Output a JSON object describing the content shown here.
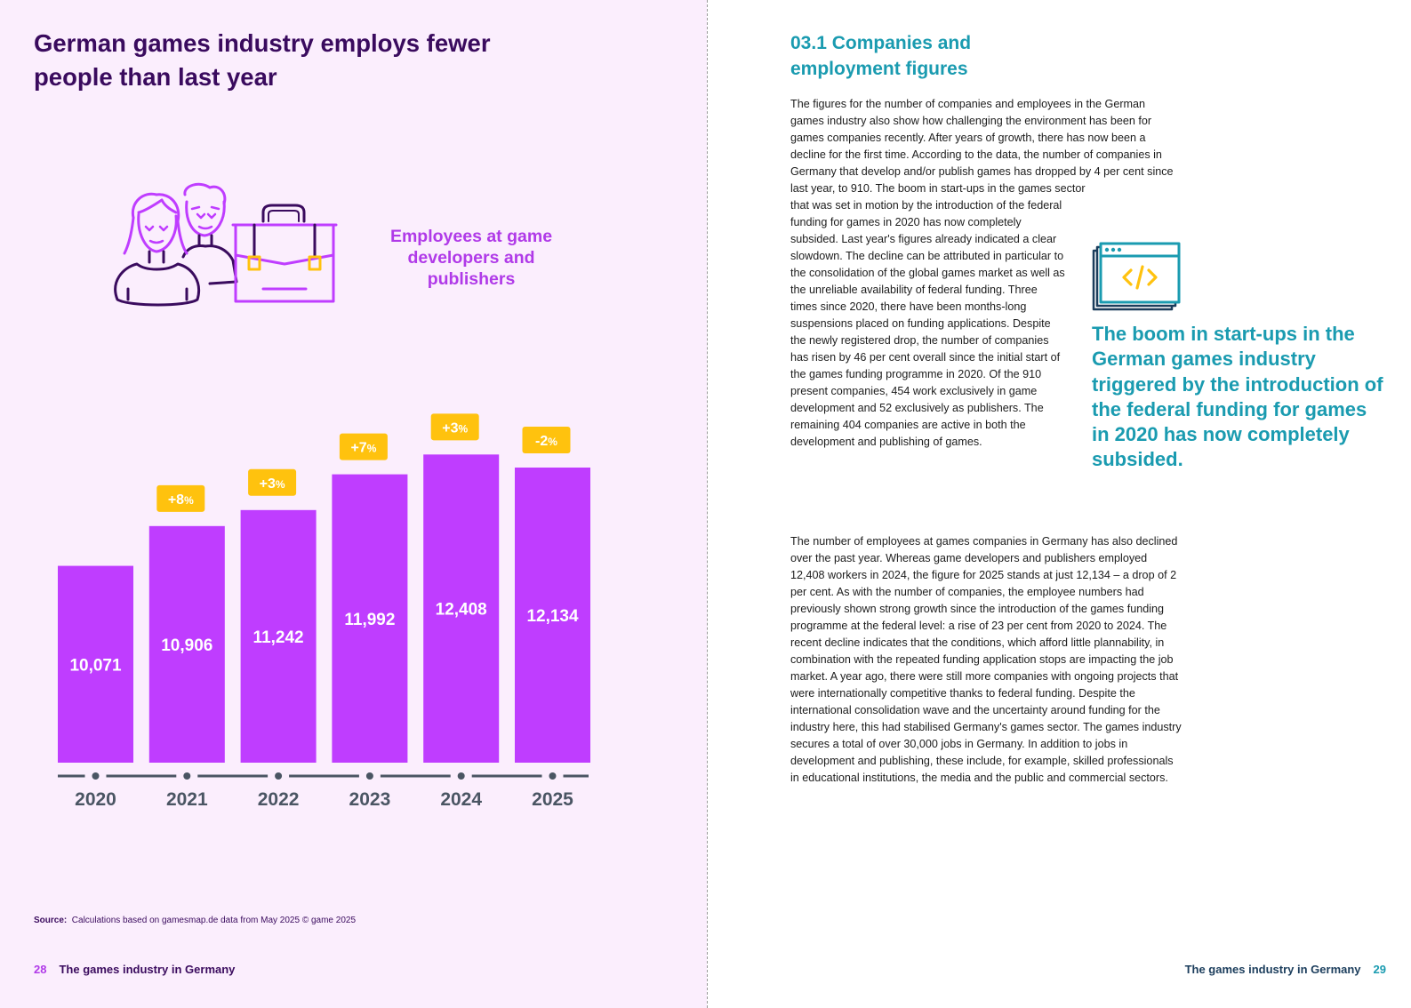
{
  "left_page": {
    "title": "German games industry employs fewer people than last year",
    "employees_label": "Employees at game developers and publishers",
    "source_label": "Source:",
    "source_text": "Calculations based on gamesmap.de data from May 2025 © game 2025",
    "page_number": "28",
    "footer_text": "The games industry in Germany"
  },
  "chart_data": {
    "type": "bar",
    "title": "Employees at game developers and publishers",
    "categories": [
      "2020",
      "2021",
      "2022",
      "2023",
      "2024",
      "2025"
    ],
    "values": [
      10071,
      10906,
      11242,
      11992,
      12408,
      12134
    ],
    "value_labels": [
      "10,071",
      "10,906",
      "11,242",
      "11,992",
      "12,408",
      "12,134"
    ],
    "change_labels": [
      "",
      "+8",
      "+3",
      "+7",
      "+3",
      "-2"
    ],
    "change_unit": "%",
    "bar_color": "#bf3dff",
    "badge_color": "#ffc20e",
    "axis_color": "#4a5563"
  },
  "right_page": {
    "section_title": "03.1 Companies and employment figures",
    "para1_wide": "The figures for the number of companies and employees in the German games industry also show how challenging the environment has been for games companies recently. After years of growth, there has now been a decline for the first time. According to the data, the number of companies in Germany that develop and/or publish games has dropped by 4 per cent since last year, to 910. The boom in start-ups in the games sector",
    "para1_narrow": "that was set in motion by the introduction of the federal funding for games in 2020 has now completely subsided. Last year's figures already indicated a clear slowdown. The decline can be attributed in particular to the consolidation of the global games market as well as the unreliable availability of federal funding. Three times since 2020, there have been months-long suspensions placed on funding applications. Despite the newly registered drop, the number of companies has risen by 46 per cent overall since the initial start of the games funding programme in 2020. Of the 910 present companies, 454 work exclusively in game development and 52 exclusively as publishers. The remaining 404 companies are active in both the development and publishing of games.",
    "para2": "The number of employees at games companies in Germany has also declined over the past year. Whereas game developers and publishers employed 12,408 workers in 2024, the figure for 2025 stands at just 12,134 – a drop of 2 per cent. As with the number of companies, the employee numbers had previously shown strong growth since the introduction of the games funding programme at the federal level: a rise of 23 per cent from 2020 to 2024. The recent decline indicates that the conditions, which afford little plannability, in combination with the repeated funding application stops are impacting the job market. A year ago, there were still more companies with ongoing projects that were internationally competitive thanks to federal funding. Despite the international consolidation wave and the uncertainty around funding for the industry here, this had stabilised Germany's games sector. The games industry secures a total of over 30,000 jobs in Germany. In addition to jobs in development and publishing, these include, for example, skilled professionals in educational institutions, the media and the public and commercial sectors.",
    "pull_quote": "The boom in start-ups in the German games industry triggered by the introduction of the federal funding for games in 2020 has now completely subsided.",
    "footer_text": "The games industry in Germany",
    "page_number": "29",
    "icon": "code-window-icon"
  }
}
